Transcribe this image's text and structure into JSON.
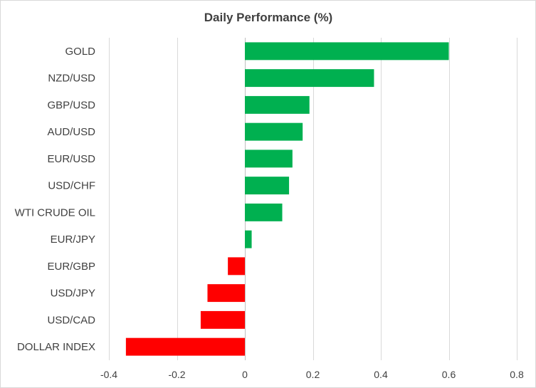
{
  "chart_data": {
    "type": "bar",
    "orientation": "horizontal",
    "title": "Daily Performance  (%)",
    "xlabel": "",
    "ylabel": "",
    "xlim": [
      -0.4,
      0.8
    ],
    "xticks": [
      "-0.4",
      "-0.2",
      "0",
      "0.2",
      "0.4",
      "0.6",
      "0.8"
    ],
    "grid": "vertical",
    "legend": "none",
    "positive_color": "#00b050",
    "negative_color": "#ff0000",
    "categories": [
      "GOLD",
      "NZD/USD",
      "GBP/USD",
      "AUD/USD",
      "EUR/USD",
      "USD/CHF",
      "WTI CRUDE OIL",
      "EUR/JPY",
      "EUR/GBP",
      "USD/JPY",
      "USD/CAD",
      "DOLLAR INDEX"
    ],
    "values": [
      0.6,
      0.38,
      0.19,
      0.17,
      0.14,
      0.13,
      0.11,
      0.02,
      -0.05,
      -0.11,
      -0.13,
      -0.35
    ]
  }
}
